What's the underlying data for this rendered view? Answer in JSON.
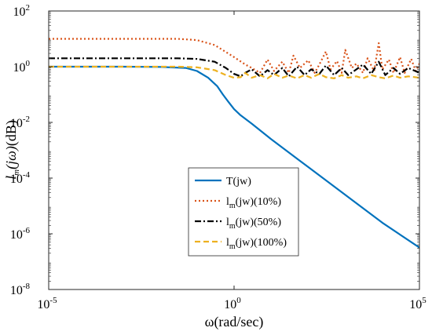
{
  "chart_data": {
    "type": "line",
    "xscale": "log",
    "yscale": "log",
    "xlim": [
      1e-05,
      100000
    ],
    "ylim": [
      1e-08,
      100
    ],
    "x_ticks": [
      {
        "base": "10",
        "exp": "-5",
        "value": 1e-05
      },
      {
        "base": "10",
        "exp": "0",
        "value": 1
      },
      {
        "base": "10",
        "exp": "5",
        "value": 100000
      }
    ],
    "y_ticks": [
      {
        "base": "10",
        "exp": "-8",
        "value": 1e-08
      },
      {
        "base": "10",
        "exp": "-6",
        "value": 1e-06
      },
      {
        "base": "10",
        "exp": "-4",
        "value": 0.0001
      },
      {
        "base": "10",
        "exp": "-2",
        "value": 0.01
      },
      {
        "base": "10",
        "exp": "0",
        "value": 1
      },
      {
        "base": "10",
        "exp": "2",
        "value": 100
      }
    ],
    "xlabel": "ω(rad/sec)",
    "ylabel": "l_m(jω)(dB)",
    "legend_position": "center",
    "series": [
      {
        "name": "T(jw)",
        "label_main": "T(jw)",
        "label_sub": "",
        "label_tail": "",
        "color": "#0072BD",
        "dash": "solid",
        "x": [
          1e-05,
          0.0001,
          0.001,
          0.01,
          0.05,
          0.1,
          0.2,
          0.35,
          0.5,
          0.7,
          1,
          1.5,
          3,
          10,
          100,
          1000,
          10000,
          100000
        ],
        "y": [
          1,
          1,
          1,
          0.98,
          0.9,
          0.7,
          0.4,
          0.2,
          0.1,
          0.055,
          0.03,
          0.018,
          0.009,
          0.0025,
          0.00025,
          2.5e-05,
          2.5e-06,
          3.2e-07
        ]
      },
      {
        "name": "l_m(jw)(10%)",
        "label_main": "l",
        "label_sub": "m",
        "label_tail": "(jw)(10%)",
        "color": "#D95319",
        "dash": "dotted",
        "x": [
          1e-05,
          0.001,
          0.03,
          0.1,
          0.3,
          1,
          2,
          3,
          5,
          8,
          12,
          20,
          30,
          40,
          60,
          100,
          150,
          200,
          300,
          400,
          600,
          800,
          1000,
          1500,
          2000,
          3000,
          4000,
          6000,
          8000,
          10000,
          15000,
          20000,
          30000,
          40000,
          60000,
          80000,
          100000
        ],
        "y": [
          10,
          10,
          10,
          9,
          6,
          2.2,
          1.2,
          0.9,
          0.6,
          1.8,
          0.7,
          1.5,
          0.6,
          2.5,
          0.9,
          1.7,
          0.6,
          1.2,
          3.5,
          0.8,
          1.6,
          0.6,
          4.0,
          0.9,
          1.3,
          0.6,
          2.0,
          0.7,
          7.0,
          0.8,
          1.8,
          0.6,
          2.2,
          0.6,
          1.9,
          0.7,
          1.3
        ]
      },
      {
        "name": "l_m(jw)(50%)",
        "label_main": "l",
        "label_sub": "m",
        "label_tail": "(jw)(50%)",
        "color": "#000000",
        "dash": "dashdot",
        "x": [
          1e-05,
          0.001,
          0.03,
          0.1,
          0.3,
          0.6,
          1,
          1.5,
          2,
          3,
          5,
          8,
          12,
          20,
          30,
          50,
          80,
          120,
          200,
          300,
          500,
          800,
          1200,
          2000,
          3000,
          5000,
          8000,
          12000,
          20000,
          30000,
          50000,
          100000
        ],
        "y": [
          2,
          2,
          2,
          1.9,
          1.5,
          0.9,
          0.55,
          0.45,
          0.6,
          0.8,
          0.45,
          0.75,
          0.5,
          0.9,
          0.45,
          1.0,
          0.5,
          0.8,
          0.55,
          1.1,
          0.5,
          0.9,
          0.5,
          0.8,
          1.2,
          0.55,
          1.5,
          0.5,
          0.9,
          0.55,
          0.9,
          0.6
        ]
      },
      {
        "name": "l_m(jw)(100%)",
        "label_main": "l",
        "label_sub": "m",
        "label_tail": "(jw)(100%)",
        "color": "#EDB120",
        "dash": "dashed",
        "x": [
          1e-05,
          0.001,
          0.03,
          0.1,
          0.3,
          0.6,
          1,
          1.5,
          2,
          3,
          5,
          8,
          12,
          20,
          30,
          50,
          80,
          120,
          200,
          300,
          500,
          800,
          1200,
          2000,
          3000,
          5000,
          8000,
          12000,
          20000,
          30000,
          50000,
          100000
        ],
        "y": [
          1,
          1,
          1,
          0.95,
          0.75,
          0.5,
          0.4,
          0.42,
          0.6,
          0.4,
          0.5,
          0.38,
          0.55,
          0.4,
          0.48,
          0.38,
          0.5,
          0.4,
          0.55,
          0.42,
          0.38,
          0.5,
          0.4,
          0.45,
          0.38,
          0.5,
          0.42,
          0.38,
          0.48,
          0.4,
          0.45,
          0.4
        ]
      }
    ]
  }
}
